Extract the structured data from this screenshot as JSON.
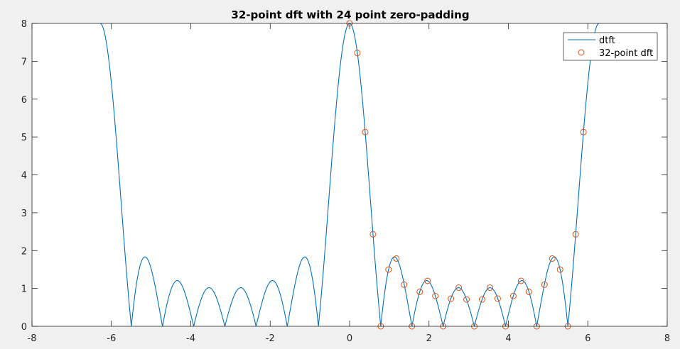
{
  "chart_data": {
    "type": "line",
    "title": "32-point dft with 24 point zero-padding",
    "xlabel": "",
    "ylabel": "",
    "xlim": [
      -8,
      8
    ],
    "ylim": [
      0,
      8
    ],
    "xticks": [
      -8,
      -6,
      -4,
      -2,
      0,
      2,
      4,
      6,
      8
    ],
    "yticks": [
      0,
      1,
      2,
      3,
      4,
      5,
      6,
      7,
      8
    ],
    "grid": false,
    "legend_position": "top-right",
    "colors": {
      "dtft": "#0072bd",
      "dft": "#d95319",
      "axes_bg": "#ffffff",
      "figure_bg": "#f0f0f0"
    },
    "series": [
      {
        "name": "dtft",
        "kind": "line",
        "description_formula": "|sin(4w)/sin(w/2)| for w in [-2pi, 2pi]",
        "samples": 1601
      },
      {
        "name": "32-point dft",
        "kind": "markers",
        "marker": "circle",
        "x": [
          0,
          0.1963,
          0.3927,
          0.589,
          0.7854,
          0.9817,
          1.1781,
          1.3744,
          1.5708,
          1.7671,
          1.9635,
          2.1598,
          2.3562,
          2.5525,
          2.7489,
          2.9452,
          3.1416,
          3.3379,
          3.5343,
          3.7306,
          3.927,
          4.1233,
          4.3197,
          4.516,
          4.7124,
          4.9087,
          5.1051,
          5.3014,
          5.4978,
          5.6941,
          5.8905,
          6.0868
        ],
        "y": [
          8,
          7.22,
          5.13,
          2.43,
          0,
          1.5,
          1.79,
          1.1,
          0,
          0.91,
          1.2,
          0.8,
          0,
          0.73,
          1.02,
          0.71,
          0,
          0.71,
          1.02,
          0.73,
          0,
          0.8,
          1.2,
          0.91,
          0,
          1.1,
          1.79,
          1.5,
          0,
          2.43,
          5.13,
          7.22
        ]
      }
    ]
  }
}
